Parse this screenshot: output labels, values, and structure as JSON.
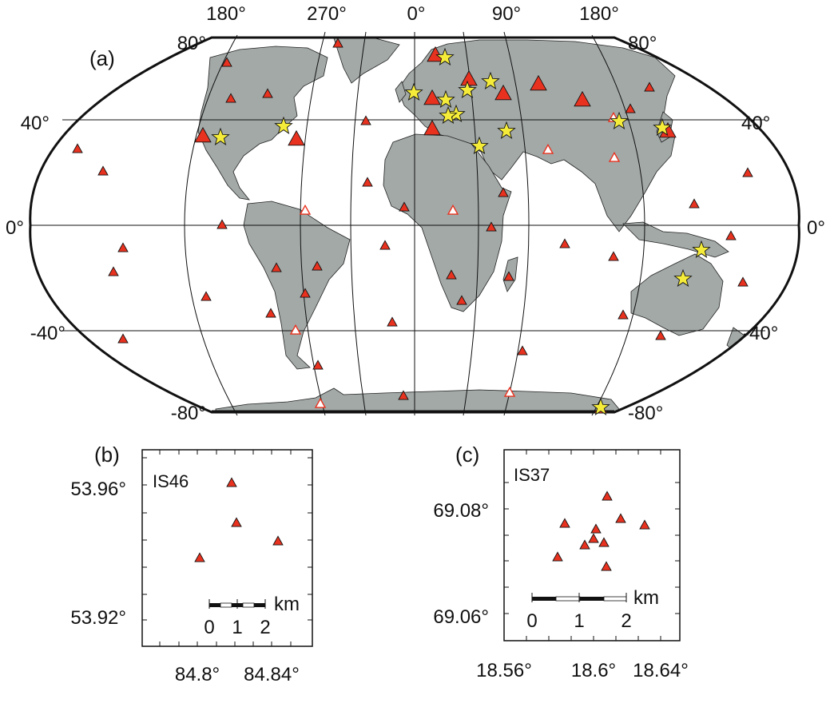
{
  "panels": {
    "world": {
      "label": "(a)",
      "top_lon_labels": [
        "180°",
        "270°",
        "0°",
        "90°",
        "180°"
      ],
      "lat_labels_left": [
        "80°",
        "40°",
        "0°",
        "-40°",
        "-80°"
      ],
      "lat_labels_right": [
        "80°",
        "40°",
        "0°",
        "-40°",
        "-80°"
      ]
    },
    "inset_b": {
      "label": "(b)",
      "station": "IS46",
      "y_labels": [
        "53.96°",
        "53.92°"
      ],
      "x_labels": [
        "84.8°",
        "84.84°"
      ],
      "scale": {
        "unit": "km",
        "ticks": [
          "0",
          "1",
          "2"
        ]
      },
      "stations_count": 4
    },
    "inset_c": {
      "label": "(c)",
      "station": "IS37",
      "y_labels": [
        "69.08°",
        "69.06°"
      ],
      "x_labels": [
        "18.56°",
        "18.6°",
        "18.64°"
      ],
      "scale": {
        "unit": "km",
        "ticks": [
          "0",
          "1",
          "2"
        ]
      },
      "stations_count": 10
    }
  },
  "colors": {
    "land": "#a2a9a7",
    "station_fill": "#e8321f",
    "star_fill": "#f5ec3a",
    "open_triangle": "#e8321f"
  },
  "symbols": {
    "filled_triangle": "station-triangle-icon",
    "open_triangle": "planned-station-triangle-icon",
    "large_triangle": "array-station-triangle-icon",
    "star": "star-icon"
  }
}
